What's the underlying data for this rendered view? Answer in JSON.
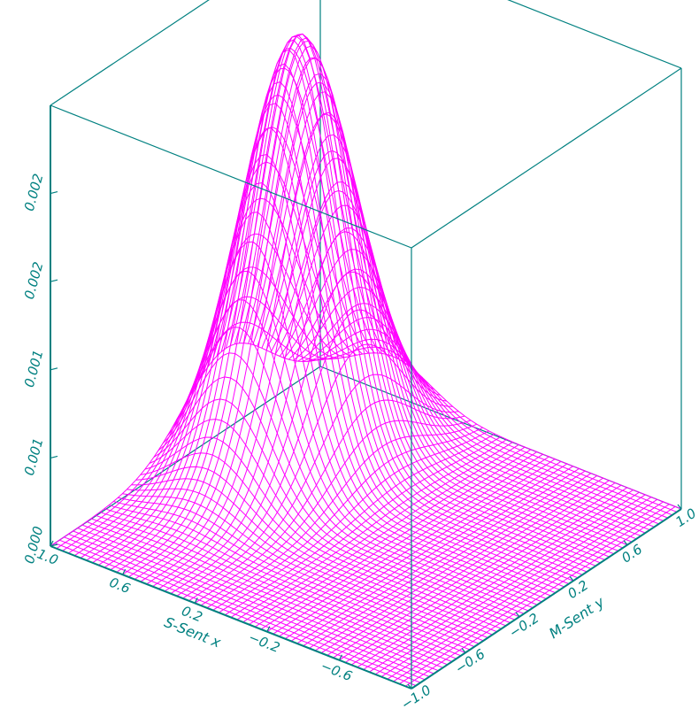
{
  "chart_data": {
    "type": "surface",
    "title": "",
    "xlabel": "S-Sent x",
    "ylabel": "M-Sent y",
    "zlabel": "",
    "xlim": [
      -1.0,
      1.0
    ],
    "ylim": [
      -1.0,
      1.0
    ],
    "zlim": [
      0.0,
      0.0025
    ],
    "x_ticks": [
      {
        "value": 1.0,
        "label": "1.0"
      },
      {
        "value": 0.6,
        "label": "0.6"
      },
      {
        "value": 0.2,
        "label": "0.2"
      },
      {
        "value": -0.2,
        "label": "−0.2"
      },
      {
        "value": -0.6,
        "label": "−0.6"
      }
    ],
    "y_ticks": [
      {
        "value": -1.0,
        "label": "−1.0"
      },
      {
        "value": -0.6,
        "label": "−0.6"
      },
      {
        "value": -0.2,
        "label": "−0.2"
      },
      {
        "value": 0.2,
        "label": "0.2"
      },
      {
        "value": 0.6,
        "label": "0.6"
      },
      {
        "value": 1.0,
        "label": "1.0"
      }
    ],
    "z_ticks": [
      {
        "value": 0.0,
        "label": "0.000"
      },
      {
        "value": 0.0005,
        "label": "0.001"
      },
      {
        "value": 0.001,
        "label": "0.001"
      },
      {
        "value": 0.0015,
        "label": "0.002"
      },
      {
        "value": 0.002,
        "label": "0.002"
      }
    ],
    "grid": false,
    "surface": {
      "function": "gaussian_bump",
      "peak_height": 0.0024,
      "peak_x": 0.6,
      "peak_y": 0.3,
      "sigma_x": 0.22,
      "sigma_y": 0.32,
      "x_samples": 61,
      "y_samples": 61
    },
    "colors": {
      "box": "#008080",
      "surface": "#ff00ff",
      "background": "#ffffff"
    }
  }
}
